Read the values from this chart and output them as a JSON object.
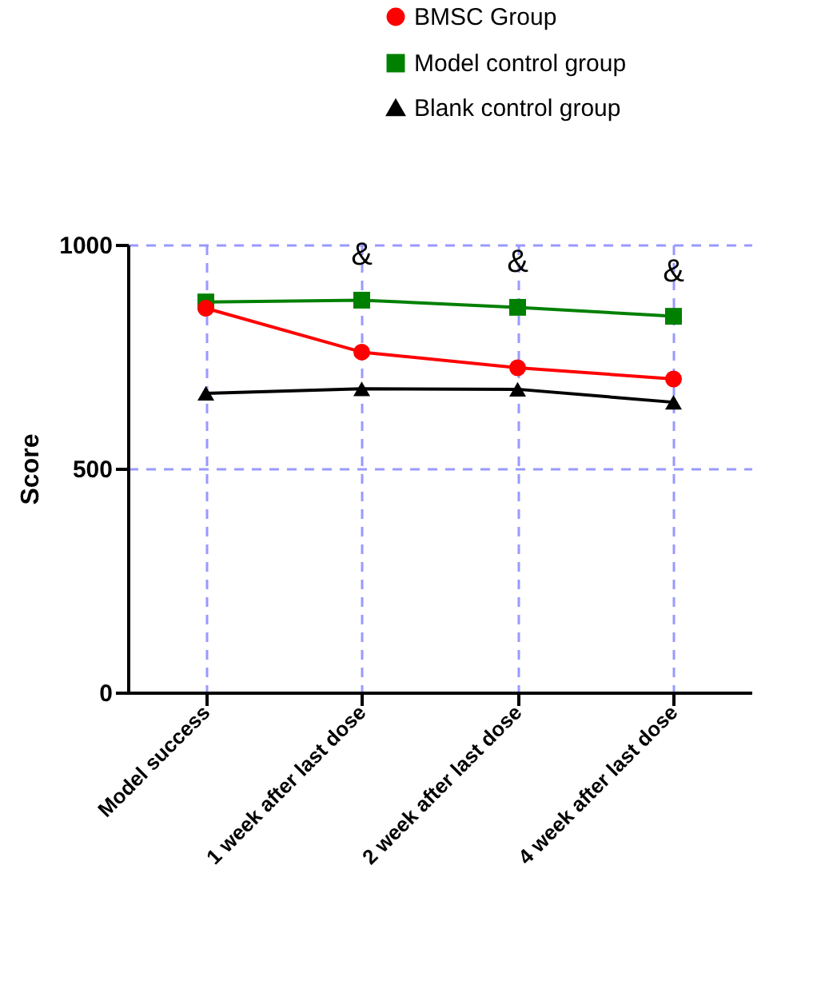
{
  "chart_data": {
    "type": "line",
    "ylabel": "Score",
    "categories": [
      "Model success",
      "1 week after last dose",
      "2 week after last dose",
      "4 week after last dose"
    ],
    "series": [
      {
        "name": "BMSC Group",
        "color": "#ff0000",
        "marker": "circle",
        "values": [
          858,
          760,
          725,
          700
        ]
      },
      {
        "name": "Model control group",
        "color": "#008000",
        "marker": "square",
        "values": [
          872,
          876,
          860,
          840
        ]
      },
      {
        "name": "Blank control group",
        "color": "#000000",
        "marker": "triangle",
        "values": [
          668,
          678,
          677,
          648
        ]
      }
    ],
    "ylim": [
      0,
      1000
    ],
    "yticks": [
      0,
      500,
      1000
    ],
    "grid": true,
    "legend": "top",
    "line_style": "solid",
    "annotations": [
      {
        "text": "&",
        "x": "1 week after last dose",
        "y": 876
      },
      {
        "text": "&",
        "x": "2 week after last dose",
        "y": 860
      },
      {
        "text": "&",
        "x": "4 week after last dose",
        "y": 840
      }
    ]
  }
}
